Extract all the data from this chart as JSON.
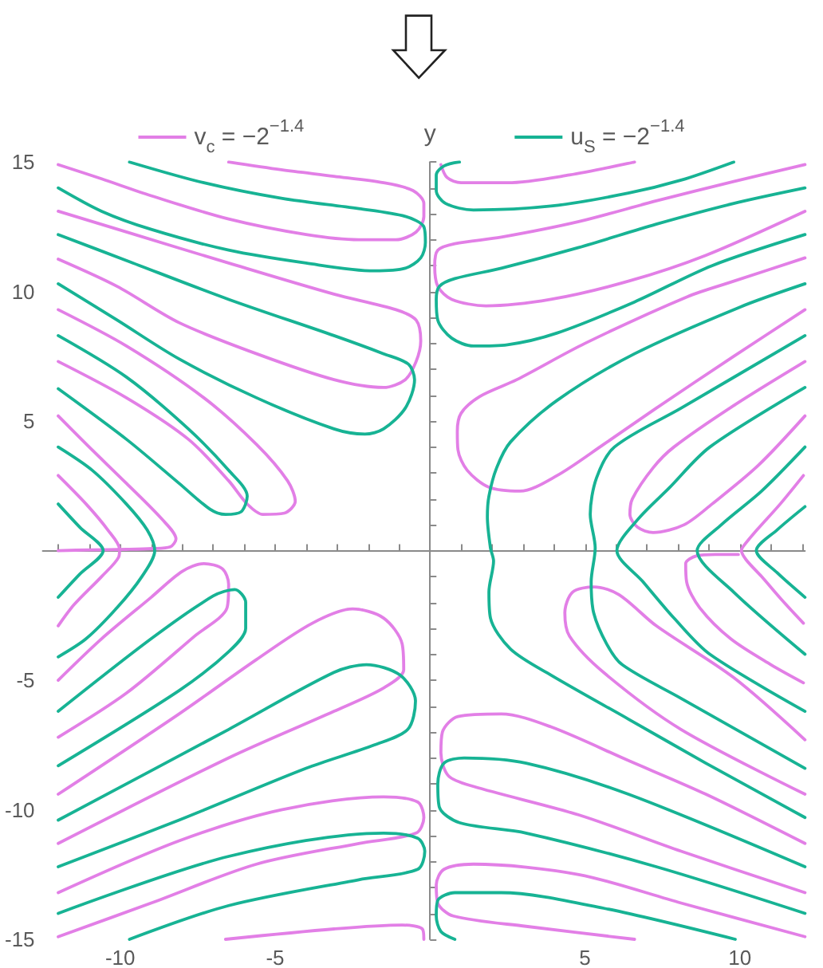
{
  "chart_data": {
    "type": "line",
    "ylabel": "y",
    "legend": "top",
    "marker": "none",
    "xlim": [
      -12.5,
      12.1
    ],
    "ylim": [
      -15,
      15
    ],
    "xticks": [
      {
        "value": -12,
        "label": null
      },
      {
        "value": -11,
        "label": null
      },
      -10,
      {
        "value": -9,
        "label": null
      },
      {
        "value": -8,
        "label": null
      },
      {
        "value": -7,
        "label": null
      },
      {
        "value": -6,
        "label": null
      },
      -5,
      {
        "value": -4,
        "label": null
      },
      {
        "value": -3,
        "label": null
      },
      {
        "value": -2,
        "label": null
      },
      {
        "value": -1,
        "label": null
      },
      {
        "value": 1,
        "label": null
      },
      {
        "value": 2,
        "label": null
      },
      {
        "value": 3,
        "label": null
      },
      {
        "value": 4,
        "label": null
      },
      5,
      {
        "value": 6,
        "label": null
      },
      {
        "value": 7,
        "label": null
      },
      {
        "value": 8,
        "label": null
      },
      {
        "value": 9,
        "label": null
      },
      10,
      {
        "value": 11,
        "label": null
      },
      {
        "value": 12,
        "label": null
      }
    ],
    "yticks": [
      -15,
      {
        "value": -14,
        "label": null
      },
      {
        "value": -13,
        "label": null
      },
      {
        "value": -12,
        "label": null
      },
      {
        "value": -11,
        "label": null
      },
      -10,
      {
        "value": -9,
        "label": null
      },
      {
        "value": -8,
        "label": null
      },
      {
        "value": -7,
        "label": null
      },
      {
        "value": -6,
        "label": null
      },
      -5,
      {
        "value": -4,
        "label": null
      },
      {
        "value": -3,
        "label": null
      },
      {
        "value": -2,
        "label": null
      },
      {
        "value": -1,
        "label": null
      },
      {
        "value": 1,
        "label": null
      },
      {
        "value": 2,
        "label": null
      },
      {
        "value": 3,
        "label": null
      },
      {
        "value": 4,
        "label": null
      },
      5,
      {
        "value": 6,
        "label": null
      },
      {
        "value": 7,
        "label": null
      },
      {
        "value": 8,
        "label": null
      },
      {
        "value": 9,
        "label": null
      },
      10,
      {
        "value": 11,
        "label": null
      },
      {
        "value": 12,
        "label": null
      },
      {
        "value": 13,
        "label": null
      },
      {
        "value": 14,
        "label": null
      },
      15
    ],
    "series": [
      {
        "name": "v$_{c}$ = −2$^{−1.4}$",
        "color": "#e27fe6",
        "x": [
          -6.5,
          -4.8,
          -3.1,
          -1.5,
          -0.55,
          -0.2,
          -0.2,
          -0.45,
          -1.1,
          -2.3,
          -4.0,
          -6.5,
          -9.0,
          -10.6,
          -12.0,
          null,
          -12.0,
          -9.8,
          -6.5,
          -3.1,
          -1.1,
          -0.45,
          -0.3,
          -0.45,
          -0.8,
          -1.5,
          -3.1,
          -5.6,
          -8.1,
          -10.1,
          -12.0,
          null,
          -12.0,
          -9.8,
          -7.3,
          -5.6,
          -4.6,
          -4.35,
          -4.7,
          -5.4,
          -5.9,
          -6.5,
          -7.8,
          -9.8,
          -12.0,
          null,
          -12.0,
          -11.0,
          -9.8,
          -8.64,
          -8.2,
          -8.38,
          -8.97,
          -9.8,
          -11.0,
          -12.0,
          null,
          -12.0,
          -11.1,
          -10.4,
          -10.02,
          -10.05,
          -10.6,
          -11.5,
          -12.0,
          null,
          -12.0,
          -10.6,
          -9.0,
          -8.0,
          -7.3,
          -6.7,
          -6.5,
          -6.55,
          -7.6,
          -9.8,
          -12.0,
          null,
          -12.0,
          -8.1,
          -5.6,
          -3.8,
          -2.5,
          -1.5,
          -0.9,
          -0.85,
          -1.5,
          -3.1,
          -6.5,
          -12.0,
          null,
          -12.0,
          -8.1,
          -4.8,
          -1.5,
          -0.4,
          -0.2,
          -0.45,
          -2.3,
          -5.6,
          -9.0,
          -12.0,
          null,
          -6.6,
          -3.1,
          -0.9,
          -0.25,
          -0.2,
          null,
          0.35,
          0.55,
          1.0,
          2.5,
          4.5,
          6.6,
          null,
          12.1,
          9.8,
          7.3,
          4.8,
          2.3,
          0.8,
          0.25,
          0.15,
          0.25,
          0.7,
          1.8,
          3.9,
          6.4,
          8.9,
          12.1,
          null,
          12.1,
          9.8,
          8.3,
          5.0,
          2.8,
          1.6,
          1.0,
          0.88,
          0.9,
          1.2,
          1.9,
          2.9,
          4.1,
          5.6,
          7.3,
          9.8,
          12.1,
          null,
          12.1,
          9.8,
          7.87,
          7.2,
          6.53,
          6.45,
          6.7,
          7.2,
          8.2,
          9.1,
          10.6,
          12.1,
          null,
          12.05,
          11.3,
          10.55,
          10.1,
          10.05,
          10.2,
          10.7,
          11.35,
          12.05,
          null,
          12.1,
          9.8,
          7.3,
          6.1,
          5.3,
          4.6,
          4.35,
          4.5,
          5.6,
          8.1,
          12.1,
          null,
          9.95,
          9.2,
          8.6,
          8.25,
          8.28,
          8.7,
          9.7,
          11.0,
          12.05,
          null,
          12.1,
          8.9,
          6.4,
          3.9,
          2.3,
          0.9,
          0.4,
          0.35,
          0.6,
          1.4,
          4.8,
          8.1,
          12.1,
          null,
          12.1,
          8.1,
          4.8,
          1.4,
          0.45,
          0.2,
          0.25,
          0.75,
          3.1,
          6.6
        ],
        "values": [
          15.0,
          14.7,
          14.45,
          14.2,
          13.9,
          13.4,
          12.9,
          12.3,
          12.0,
          12.0,
          12.2,
          12.8,
          13.7,
          14.35,
          14.9,
          null,
          13.1,
          12.3,
          11.1,
          9.9,
          9.3,
          8.9,
          8.1,
          7.3,
          6.6,
          6.3,
          6.6,
          7.6,
          8.8,
          10.2,
          11.25,
          null,
          9.3,
          7.9,
          5.9,
          4.1,
          2.7,
          1.9,
          1.45,
          1.4,
          1.8,
          2.7,
          4.3,
          5.9,
          7.3,
          null,
          5.2,
          4.0,
          2.6,
          1.2,
          0.45,
          0.15,
          0.08,
          0.05,
          0.03,
          0.0,
          null,
          2.9,
          1.8,
          0.8,
          0.05,
          -0.25,
          -1.0,
          -2.1,
          -2.9,
          null,
          -5.0,
          -3.4,
          -1.8,
          -0.8,
          -0.5,
          -0.7,
          -1.3,
          -2.2,
          -3.3,
          -5.5,
          -7.2,
          null,
          -9.4,
          -6.3,
          -4.2,
          -2.8,
          -2.25,
          -2.6,
          -3.6,
          -4.6,
          -5.3,
          -6.2,
          -8.0,
          -11.3,
          null,
          -13.2,
          -11.2,
          -10.0,
          -9.5,
          -9.7,
          -10.3,
          -10.9,
          -11.3,
          -12.1,
          -13.6,
          -14.9,
          null,
          -15.0,
          -14.6,
          -14.45,
          -14.6,
          -15.0,
          null,
          14.9,
          14.4,
          14.2,
          14.2,
          14.5,
          15.0,
          null,
          14.9,
          14.25,
          13.5,
          12.7,
          12.1,
          11.85,
          11.6,
          11.0,
          10.2,
          9.7,
          9.45,
          9.7,
          10.4,
          11.4,
          13.1,
          null,
          11.3,
          10.4,
          9.8,
          8.0,
          6.6,
          5.95,
          5.3,
          4.6,
          3.9,
          3.1,
          2.45,
          2.3,
          2.9,
          4.1,
          5.5,
          7.5,
          9.3,
          null,
          7.3,
          5.6,
          4.0,
          3.2,
          2.0,
          1.4,
          0.9,
          0.7,
          1.0,
          1.8,
          3.3,
          5.2,
          null,
          2.9,
          1.8,
          0.8,
          0.15,
          0.0,
          -0.35,
          -1.0,
          -1.9,
          -2.8,
          null,
          -7.3,
          -4.9,
          -2.9,
          -1.7,
          -1.4,
          -1.6,
          -2.4,
          -3.3,
          -4.7,
          -6.9,
          -9.4,
          null,
          -0.15,
          -0.15,
          -0.2,
          -0.5,
          -1.2,
          -2.2,
          -3.4,
          -4.4,
          -5.1,
          null,
          -11.3,
          -9.4,
          -8.1,
          -6.8,
          -6.3,
          -6.4,
          -7.0,
          -7.8,
          -8.7,
          -9.1,
          -10.2,
          -11.6,
          -13.2,
          null,
          -14.9,
          -13.6,
          -12.5,
          -12.1,
          -12.3,
          -12.9,
          -13.6,
          -14.1,
          -14.5,
          -15.0
        ]
      },
      {
        "name": "u$_{S}$ = −2$^{−1.4}$",
        "color": "#17b394",
        "x": [
          -9.7,
          -7.3,
          -4.8,
          -2.3,
          -0.8,
          -0.2,
          -0.15,
          -0.3,
          -0.8,
          -1.8,
          -4.0,
          -6.5,
          -9.0,
          -10.6,
          -12.0,
          null,
          -12.0,
          -9.8,
          -6.5,
          -3.1,
          -1.5,
          -0.7,
          -0.5,
          -0.8,
          -1.5,
          -2.1,
          -3.1,
          -5.6,
          -8.1,
          -10.1,
          -12.0,
          null,
          -12.0,
          -9.8,
          -7.8,
          -6.5,
          -5.9,
          -6.1,
          -6.6,
          -7.1,
          -8.1,
          -9.8,
          -12.0,
          null,
          -12.0,
          -10.9,
          -9.8,
          -9.13,
          -8.885,
          -9.3,
          -10.1,
          -11.1,
          -12.0,
          null,
          -12.0,
          -11.3,
          -10.55,
          -11.3,
          -12.0,
          null,
          -12.0,
          -9.0,
          -7.0,
          -6.3,
          -5.95,
          -5.95,
          -6.5,
          -8.1,
          -12.0,
          null,
          -12.0,
          -6.5,
          -3.1,
          -2.05,
          -0.97,
          -0.47,
          -0.72,
          -1.8,
          -4.0,
          -8.1,
          -12.0,
          null,
          -12.0,
          -6.5,
          -1.5,
          -0.4,
          -0.17,
          -0.4,
          -2.3,
          -6.5,
          -9.7,
          null,
          0.95,
          0.45,
          0.2,
          0.2,
          0.5,
          1.4,
          3.9,
          6.4,
          8.1,
          9.8,
          null,
          12.1,
          9.8,
          7.3,
          4.8,
          2.3,
          0.8,
          0.3,
          0.2,
          0.25,
          0.7,
          1.4,
          2.5,
          4.1,
          6.6,
          9.1,
          12.1,
          null,
          12.1,
          10.0,
          6.6,
          4.1,
          2.6,
          2.15,
          1.9,
          1.85,
          1.95,
          2.05,
          1.9,
          1.95,
          2.6,
          3.9,
          6.4,
          8.9,
          12.1,
          null,
          12.1,
          8.1,
          5.95,
          5.37,
          5.17,
          5.33,
          5.2,
          5.28,
          5.7,
          6.2,
          8.1,
          12.1,
          null,
          12.1,
          9.03,
          7.7,
          6.7,
          6.03,
          6.87,
          7.87,
          9.03,
          12.1,
          null,
          12.1,
          10.7,
          9.4,
          8.62,
          9.8,
          12.1,
          null,
          12.1,
          11.2,
          10.53,
          11.2,
          12.1,
          null,
          12.1,
          6.4,
          3.1,
          1.1,
          0.45,
          0.25,
          0.3,
          0.95,
          3.1,
          7.3,
          12.1,
          null,
          9.85,
          5.6,
          2.3,
          0.8,
          0.25,
          0.2,
          0.35,
          0.8
        ],
        "values": [
          15.0,
          14.2,
          13.6,
          13.2,
          12.9,
          12.5,
          11.9,
          11.3,
          10.9,
          10.8,
          11.1,
          11.6,
          12.4,
          13.1,
          14.0,
          null,
          12.2,
          11.2,
          9.7,
          8.3,
          7.6,
          7.2,
          6.6,
          5.5,
          4.7,
          4.5,
          4.7,
          5.9,
          7.4,
          8.9,
          10.3,
          null,
          8.3,
          6.7,
          4.7,
          3.1,
          2.1,
          1.5,
          1.4,
          1.6,
          2.6,
          4.3,
          6.25,
          null,
          4.0,
          3.1,
          1.8,
          0.8,
          0.0,
          -1.0,
          -2.2,
          -3.4,
          -4.1,
          null,
          1.8,
          0.9,
          0.0,
          -0.9,
          -1.8,
          null,
          -6.2,
          -3.4,
          -1.75,
          -1.5,
          -2.0,
          -3.0,
          -3.9,
          -5.4,
          -8.3,
          null,
          -10.4,
          -6.9,
          -4.7,
          -4.4,
          -4.8,
          -5.8,
          -6.9,
          -7.5,
          -8.4,
          -10.4,
          -12.2,
          null,
          -14.0,
          -11.8,
          -10.9,
          -11.1,
          -11.6,
          -12.3,
          -12.7,
          -13.7,
          -15.0,
          null,
          15.0,
          14.85,
          14.5,
          13.9,
          13.4,
          13.15,
          13.3,
          13.8,
          14.3,
          15.0,
          null,
          14.0,
          13.4,
          12.6,
          11.7,
          10.9,
          10.5,
          10.2,
          9.7,
          8.9,
          8.2,
          7.9,
          7.95,
          8.4,
          9.6,
          11.0,
          12.2,
          null,
          10.3,
          9.4,
          7.6,
          5.8,
          4.2,
          3.2,
          2.1,
          1.3,
          0.1,
          -0.4,
          -1.6,
          -2.6,
          -3.8,
          -4.8,
          -6.5,
          -8.2,
          -10.3,
          null,
          8.3,
          5.5,
          4.0,
          2.8,
          1.4,
          0.1,
          -1.2,
          -2.4,
          -3.6,
          -4.4,
          -5.7,
          -8.4,
          null,
          6.3,
          4.0,
          2.4,
          1.2,
          0.0,
          -1.2,
          -2.6,
          -4.0,
          -6.2,
          null,
          4.0,
          2.3,
          1.0,
          0.0,
          -1.6,
          -4.0,
          null,
          1.7,
          0.8,
          0.0,
          -0.85,
          -1.8,
          null,
          -12.2,
          -9.4,
          -8.2,
          -8.0,
          -8.2,
          -9.0,
          -9.9,
          -10.5,
          -10.9,
          -12.2,
          -14.0,
          null,
          -15.0,
          -13.8,
          -13.2,
          -13.2,
          -13.5,
          -14.1,
          -14.7,
          -15.0
        ]
      }
    ]
  }
}
